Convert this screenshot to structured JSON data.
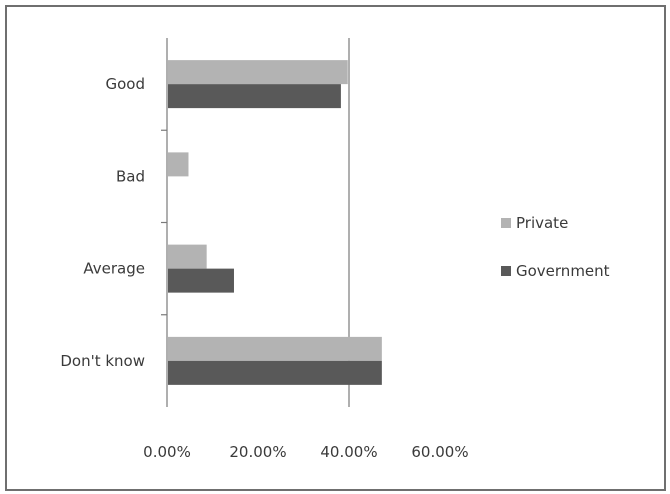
{
  "chart_data": {
    "type": "bar",
    "orientation": "horizontal",
    "categories": [
      "Good",
      "Bad",
      "Average",
      "Don't know"
    ],
    "series": [
      {
        "name": "Private",
        "color": "#b3b3b3",
        "values": [
          39.5,
          4.5,
          8.5,
          47.0
        ]
      },
      {
        "name": "Government",
        "color": "#595959",
        "values": [
          38.0,
          0.0,
          14.5,
          47.0
        ]
      }
    ],
    "x_ticks": [
      "0.00%",
      "20.00%",
      "40.00%",
      "60.00%"
    ],
    "xlim": [
      0,
      60
    ],
    "gridlines": [
      40
    ],
    "legend_position": "right",
    "title": "",
    "xlabel": "",
    "ylabel": ""
  }
}
